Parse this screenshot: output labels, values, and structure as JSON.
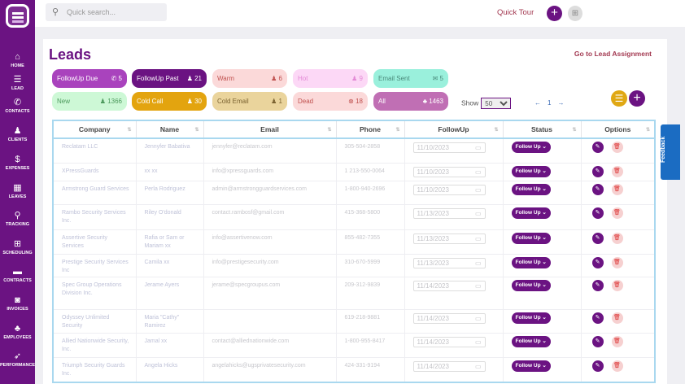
{
  "sidebar": {
    "items": [
      {
        "label": "HOME",
        "icon": "home-icon",
        "g": "⌂"
      },
      {
        "label": "LEAD",
        "icon": "database-icon",
        "g": "☰"
      },
      {
        "label": "CONTACTS",
        "icon": "phone-icon",
        "g": "✆"
      },
      {
        "label": "CLIENTS",
        "icon": "user-icon",
        "g": "♟"
      },
      {
        "label": "EXPENSES",
        "icon": "dollar-icon",
        "g": "$"
      },
      {
        "label": "LEAVES",
        "icon": "calendar-icon",
        "g": "▦"
      },
      {
        "label": "TRACKING",
        "icon": "location-pin-icon",
        "g": "⚲"
      },
      {
        "label": "SCHEDULING",
        "icon": "calendar-plus-icon",
        "g": "⊞"
      },
      {
        "label": "CONTRACTS",
        "icon": "briefcase-icon",
        "g": "▬"
      },
      {
        "label": "INVOICES",
        "icon": "money-icon",
        "g": "◙"
      },
      {
        "label": "EMPLOYEES",
        "icon": "users-icon",
        "g": "♣"
      },
      {
        "label": "PERFORMANCE",
        "icon": "rocket-icon",
        "g": "➶"
      }
    ]
  },
  "topbar": {
    "search_placeholder": "Quick search...",
    "quick_tour": "Quick Tour"
  },
  "page": {
    "title": "Leads",
    "assignment_link": "Go to Lead Assignment"
  },
  "filters": [
    {
      "label": "FollowUp Due",
      "count": "5",
      "icon": "phone-icon",
      "g": "✆",
      "bg": "#a943bd",
      "fg": "#ffffff"
    },
    {
      "label": "FollowUp Past",
      "count": "21",
      "icon": "user-icon",
      "g": "♟",
      "bg": "#6b1382",
      "fg": "#ffffff"
    },
    {
      "label": "Warm",
      "count": "6",
      "icon": "user-icon",
      "g": "♟",
      "bg": "#fbd9d9",
      "fg": "#c0514f"
    },
    {
      "label": "Hot",
      "count": "9",
      "icon": "user-icon",
      "g": "♟",
      "bg": "#fcd8f6",
      "fg": "#e38ad6"
    },
    {
      "label": "Email Sent",
      "count": "5",
      "icon": "envelope-icon",
      "g": "✉",
      "bg": "#9af0dc",
      "fg": "#4a8a7b"
    },
    {
      "label": "New",
      "count": "1366",
      "icon": "user-icon",
      "g": "♟",
      "bg": "#cdf8d6",
      "fg": "#4d9a5d"
    },
    {
      "label": "Cold Call",
      "count": "30",
      "icon": "user-icon",
      "g": "♟",
      "bg": "#e3a40f",
      "fg": "#ffffff"
    },
    {
      "label": "Cold Email",
      "count": "1",
      "icon": "user-icon",
      "g": "♟",
      "bg": "#ead49c",
      "fg": "#7a6230"
    },
    {
      "label": "Dead",
      "count": "18",
      "icon": "ban-icon",
      "g": "⊗",
      "bg": "#fbd9d9",
      "fg": "#c0514f"
    },
    {
      "label": "All",
      "count": "1463",
      "icon": "users-icon",
      "g": "♣",
      "bg": "#c06fb4",
      "fg": "#ffffff"
    }
  ],
  "controls": {
    "show_label": "Show",
    "show_value": "50",
    "page_prev": "←",
    "page": "1",
    "page_next": "→"
  },
  "table": {
    "headers": [
      "Company",
      "Name",
      "Email",
      "Phone",
      "FollowUp",
      "Status",
      "Options"
    ],
    "rows": [
      {
        "company": "Reclatam LLC",
        "name": "Jennyfer Babativa",
        "email": "jennyfer@reclatam.com",
        "phone": "305-504-2858",
        "followup": "11/10/2023",
        "status": "Follow Up"
      },
      {
        "company": "XPressGuards",
        "name": "xx xx",
        "email": "info@xpressguards.com",
        "phone": "1 213-550-0064",
        "followup": "11/10/2023",
        "status": "Follow Up"
      },
      {
        "company": "Armstrong Guard Services",
        "name": "Perla Rodriguez",
        "email": "admin@armstrongguardservices.com",
        "phone": "1-800-940-2696",
        "followup": "11/10/2023",
        "status": "Follow Up"
      },
      {
        "company": "Rambo Security Services Inc.",
        "name": "Riley O'donald",
        "email": "contact.rambosf@gmail.com",
        "phone": "415-368-5800",
        "followup": "11/13/2023",
        "status": "Follow Up"
      },
      {
        "company": "Assertive Security Services",
        "name": "Rafia or Sam or Mariam xx",
        "email": "info@assertivenow.com",
        "phone": "855-482-7355",
        "followup": "11/13/2023",
        "status": "Follow Up"
      },
      {
        "company": "Prestige Security Services Inc",
        "name": "Camila xx",
        "email": "info@prestigesecurity.com",
        "phone": "310-670-5999",
        "followup": "11/13/2023",
        "status": "Follow Up"
      },
      {
        "company": "Spec Group Operations Division Inc.",
        "name": "Jerame Ayers",
        "email": "jerame@specgroupus.com",
        "phone": "209-312-9839",
        "followup": "11/14/2023",
        "status": "Follow Up"
      },
      {
        "company": "Odyssey Unlimited Security",
        "name": "Maria \"Cathy\" Ramirez",
        "email": "",
        "phone": "619-218-9881",
        "followup": "11/14/2023",
        "status": "Follow Up"
      },
      {
        "company": "Allied Nationwide Security, Inc.",
        "name": "Jamal xx",
        "email": "contact@alliednationwide.com",
        "phone": "1-800-955-8417",
        "followup": "11/14/2023",
        "status": "Follow Up"
      },
      {
        "company": "Triumph Security Guards Inc.",
        "name": "Angela Hicks",
        "email": "angelahicks@ugsprivatesecurity.com",
        "phone": "424-331-9194",
        "followup": "11/14/2023",
        "status": "Follow Up"
      }
    ]
  },
  "feedback": "Feedback",
  "colors": {
    "brand": "#6b1382",
    "accent": "#e3a40f",
    "link": "#a33a52"
  }
}
